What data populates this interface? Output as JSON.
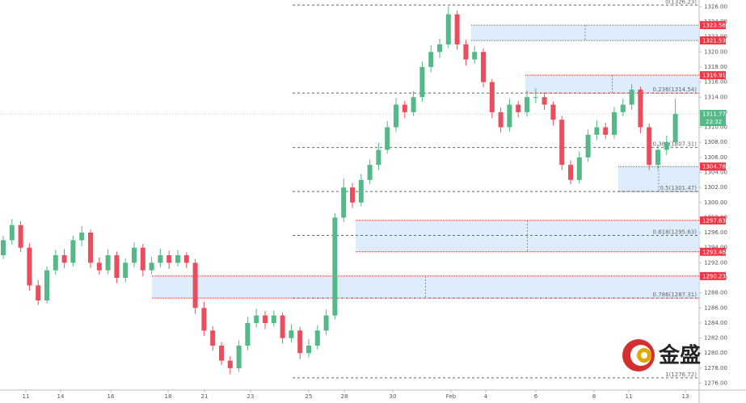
{
  "chart_data": {
    "type": "candlestick",
    "candles": [
      [
        1293,
        1295.6,
        1292.5,
        1295
      ],
      [
        1295,
        1297.8,
        1294.4,
        1297
      ],
      [
        1297,
        1297.5,
        1293.4,
        1294
      ],
      [
        1294,
        1294.6,
        1288.3,
        1289
      ],
      [
        1289,
        1289.7,
        1286.4,
        1287
      ],
      [
        1287,
        1291.5,
        1286.6,
        1291
      ],
      [
        1291,
        1293.7,
        1290.4,
        1293
      ],
      [
        1293,
        1293.8,
        1291.3,
        1292
      ],
      [
        1292,
        1295.6,
        1291.5,
        1295
      ],
      [
        1295,
        1296.9,
        1294.2,
        1296
      ],
      [
        1296,
        1296.4,
        1291.3,
        1292
      ],
      [
        1292,
        1292.7,
        1290.4,
        1291
      ],
      [
        1291,
        1293.8,
        1290.5,
        1293
      ],
      [
        1293,
        1293.5,
        1289.3,
        1290
      ],
      [
        1290,
        1292.6,
        1289.4,
        1292
      ],
      [
        1292,
        1294.7,
        1291.4,
        1294
      ],
      [
        1294,
        1294.5,
        1290.2,
        1291
      ],
      [
        1291,
        1292.8,
        1290.5,
        1292
      ],
      [
        1292,
        1293.9,
        1291.4,
        1293
      ],
      [
        1293,
        1293.6,
        1291.2,
        1292
      ],
      [
        1292,
        1293.7,
        1291.5,
        1293
      ],
      [
        1293,
        1293.4,
        1291.3,
        1292
      ],
      [
        1292,
        1292.5,
        1285.2,
        1286
      ],
      [
        1286,
        1286.8,
        1282.3,
        1283
      ],
      [
        1283,
        1283.6,
        1280.3,
        1281
      ],
      [
        1281,
        1281.5,
        1278.4,
        1279
      ],
      [
        1279,
        1279.6,
        1277.2,
        1278
      ],
      [
        1278,
        1281.7,
        1277.5,
        1281
      ],
      [
        1281,
        1284.8,
        1280.4,
        1284
      ],
      [
        1284,
        1285.9,
        1283.4,
        1285
      ],
      [
        1285,
        1285.6,
        1283.2,
        1284
      ],
      [
        1284,
        1285.7,
        1283.5,
        1285
      ],
      [
        1285,
        1285.4,
        1281.3,
        1282
      ],
      [
        1282,
        1283.8,
        1281.4,
        1283
      ],
      [
        1283,
        1283.5,
        1279.2,
        1280
      ],
      [
        1280,
        1281.9,
        1279.4,
        1281
      ],
      [
        1281,
        1283.7,
        1280.5,
        1283
      ],
      [
        1283,
        1285.8,
        1282.4,
        1285
      ],
      [
        1285,
        1298.6,
        1284.5,
        1298
      ],
      [
        1298,
        1303.2,
        1297.4,
        1302
      ],
      [
        1302,
        1302.6,
        1299.3,
        1300
      ],
      [
        1300,
        1303.8,
        1299.5,
        1303
      ],
      [
        1303,
        1305.7,
        1302.4,
        1305
      ],
      [
        1305,
        1307.9,
        1304.3,
        1307
      ],
      [
        1307,
        1310.8,
        1306.5,
        1310
      ],
      [
        1310,
        1313.9,
        1309.4,
        1313
      ],
      [
        1313,
        1313.5,
        1311.2,
        1312
      ],
      [
        1312,
        1314.8,
        1311.5,
        1314
      ],
      [
        1314,
        1318.7,
        1313.4,
        1318
      ],
      [
        1318,
        1320.9,
        1317.3,
        1320
      ],
      [
        1320,
        1321.8,
        1319.2,
        1321
      ],
      [
        1321,
        1326,
        1320.5,
        1325
      ],
      [
        1325,
        1325.5,
        1320.3,
        1321
      ],
      [
        1321,
        1321.6,
        1318.2,
        1319
      ],
      [
        1319,
        1320.8,
        1318.4,
        1320
      ],
      [
        1320,
        1320.5,
        1315.3,
        1316
      ],
      [
        1316,
        1316.4,
        1311.2,
        1312
      ],
      [
        1312,
        1312.6,
        1309.3,
        1310
      ],
      [
        1310,
        1313.8,
        1309.4,
        1313
      ],
      [
        1313,
        1313.5,
        1311.3,
        1312
      ],
      [
        1312,
        1314.9,
        1311.4,
        1314
      ],
      [
        1314,
        1315.2,
        1313.2,
        1314
      ],
      [
        1314,
        1314.6,
        1312.3,
        1313
      ],
      [
        1313,
        1313.4,
        1310.2,
        1311
      ],
      [
        1311,
        1311.5,
        1304.3,
        1305
      ],
      [
        1305,
        1305.6,
        1302.4,
        1303
      ],
      [
        1303,
        1306.8,
        1302.5,
        1306
      ],
      [
        1306,
        1309.7,
        1305.4,
        1309
      ],
      [
        1309,
        1310.9,
        1308.3,
        1310
      ],
      [
        1310,
        1310.6,
        1308.4,
        1309
      ],
      [
        1309,
        1312.7,
        1308.5,
        1312
      ],
      [
        1312,
        1313.8,
        1311.4,
        1313
      ],
      [
        1313,
        1315.8,
        1312.3,
        1315
      ],
      [
        1315,
        1315.4,
        1309.2,
        1310
      ],
      [
        1310,
        1310.5,
        1304.3,
        1305
      ],
      [
        1305,
        1307.7,
        1304.4,
        1307
      ],
      [
        1307,
        1308.9,
        1306.3,
        1308
      ],
      [
        1308,
        1313.8,
        1307.5,
        1311.77
      ]
    ],
    "up_color": "#53b987",
    "down_color": "#eb4d5c",
    "x_labels": [
      "11",
      "14",
      "16",
      "18",
      "21",
      "23",
      "25",
      "28",
      "30",
      "Feb",
      "4",
      "6",
      "8",
      "11",
      "13"
    ],
    "ylim": [
      1275.2,
      1326.9
    ],
    "yticks": [
      {
        "value": 1276,
        "label": "1276.00"
      },
      {
        "value": 1278,
        "label": "1278.00"
      },
      {
        "value": 1280,
        "label": "1280.00"
      },
      {
        "value": 1282,
        "label": "1282.00"
      },
      {
        "value": 1284,
        "label": "1284.00"
      },
      {
        "value": 1286,
        "label": "1286.00"
      },
      {
        "value": 1288,
        "label": "1288.00"
      },
      {
        "value": 1290,
        "label": "1290.00"
      },
      {
        "value": 1292,
        "label": "1292.00"
      },
      {
        "value": 1294,
        "label": "1294.00"
      },
      {
        "value": 1296,
        "label": "1296.00"
      },
      {
        "value": 1298,
        "label": "1298.00"
      },
      {
        "value": 1300,
        "label": "1300.00"
      },
      {
        "value": 1302,
        "label": "1302.00"
      },
      {
        "value": 1304,
        "label": "1304.00"
      },
      {
        "value": 1306,
        "label": "1306.00"
      },
      {
        "value": 1308,
        "label": "1308.00"
      },
      {
        "value": 1310,
        "label": "1310.00"
      },
      {
        "value": 1312,
        "label": "1312.00"
      },
      {
        "value": 1314,
        "label": "1314.00"
      },
      {
        "value": 1316,
        "label": "1316.00"
      },
      {
        "value": 1318,
        "label": "1318.00"
      },
      {
        "value": 1320,
        "label": "1320.00"
      },
      {
        "value": 1322,
        "label": "1322.00"
      },
      {
        "value": 1324,
        "label": "1324.00"
      },
      {
        "value": 1326,
        "label": "1326.00"
      }
    ],
    "fib_levels": [
      {
        "value": 1326.23,
        "label": "0(1326.23)"
      },
      {
        "value": 1314.54,
        "label": "0.236(1314.54)"
      },
      {
        "value": 1307.31,
        "label": "0.382(1307.31)"
      },
      {
        "value": 1301.47,
        "label": "0.5(1301.47)"
      },
      {
        "value": 1295.63,
        "label": "0.618(1295.63)"
      },
      {
        "value": 1287.31,
        "label": "0.786(1287.31)"
      },
      {
        "value": 1276.72,
        "label": "1(1276.72)"
      }
    ],
    "zones": [
      {
        "high": 1323.56,
        "low": 1321.53
      },
      {
        "high": 1316.91,
        "low": 1314.54
      },
      {
        "high": 1304.78,
        "low": 1301.47
      },
      {
        "high": 1297.63,
        "low": 1293.46
      },
      {
        "high": 1290.23,
        "low": 1287.31
      }
    ],
    "zone_color": "#d6e8fb",
    "zone_border": "#e53935",
    "price_tags": [
      1323.56,
      1321.53,
      1316.91,
      1304.78,
      1297.63,
      1293.46,
      1290.23
    ],
    "last_price": 1311.77,
    "countdown": "22:32",
    "logo_text": "金盛"
  }
}
